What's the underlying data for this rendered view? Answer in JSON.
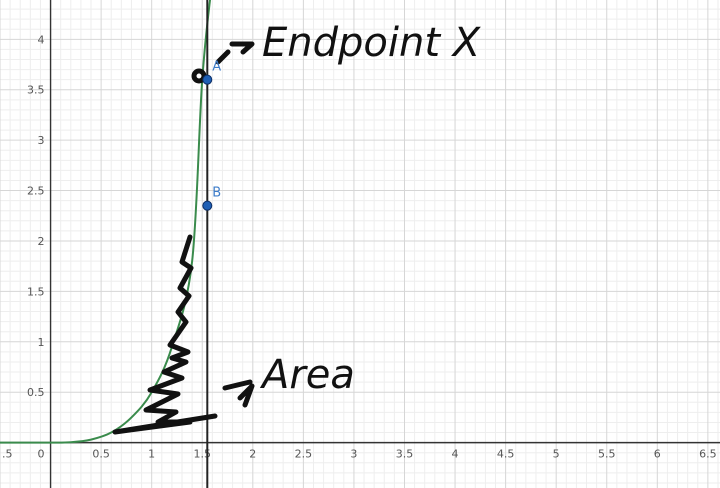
{
  "chart_data": {
    "type": "line",
    "xlim": [
      -0.5,
      6.62
    ],
    "ylim": [
      -0.45,
      4.39
    ],
    "grid": true,
    "x_ticks": [
      "0.5",
      "1",
      "1.5",
      "2",
      "2.5",
      "3",
      "3.5",
      "4",
      "4.5",
      "5",
      "5.5",
      "6",
      "6.5"
    ],
    "y_ticks": [
      "0.5",
      "1",
      "1.5",
      "2",
      "2.5",
      "3",
      "3.5",
      "4"
    ],
    "x_left_edge_label": ".5",
    "origin_label": "0",
    "curve": {
      "color": "#3a8b4c",
      "x": [
        -0.5,
        0,
        0.2,
        0.4,
        0.6,
        0.8,
        1.0,
        1.2,
        1.4,
        1.5,
        1.6,
        1.7
      ],
      "y": [
        0,
        0,
        0.004,
        0.03,
        0.1,
        0.25,
        0.5,
        0.95,
        1.8,
        3.6,
        4.6,
        5.5
      ]
    },
    "vertical_line": {
      "x": 1.55,
      "color": "#222222"
    },
    "points": [
      {
        "name": "A",
        "x": 1.55,
        "y": 3.6,
        "color": "#1f5fb4"
      },
      {
        "name": "B",
        "x": 1.55,
        "y": 2.35,
        "color": "#1f5fb4"
      }
    ]
  },
  "annotations": {
    "endpoint_text": "Endpoint X",
    "area_text": "Area"
  }
}
